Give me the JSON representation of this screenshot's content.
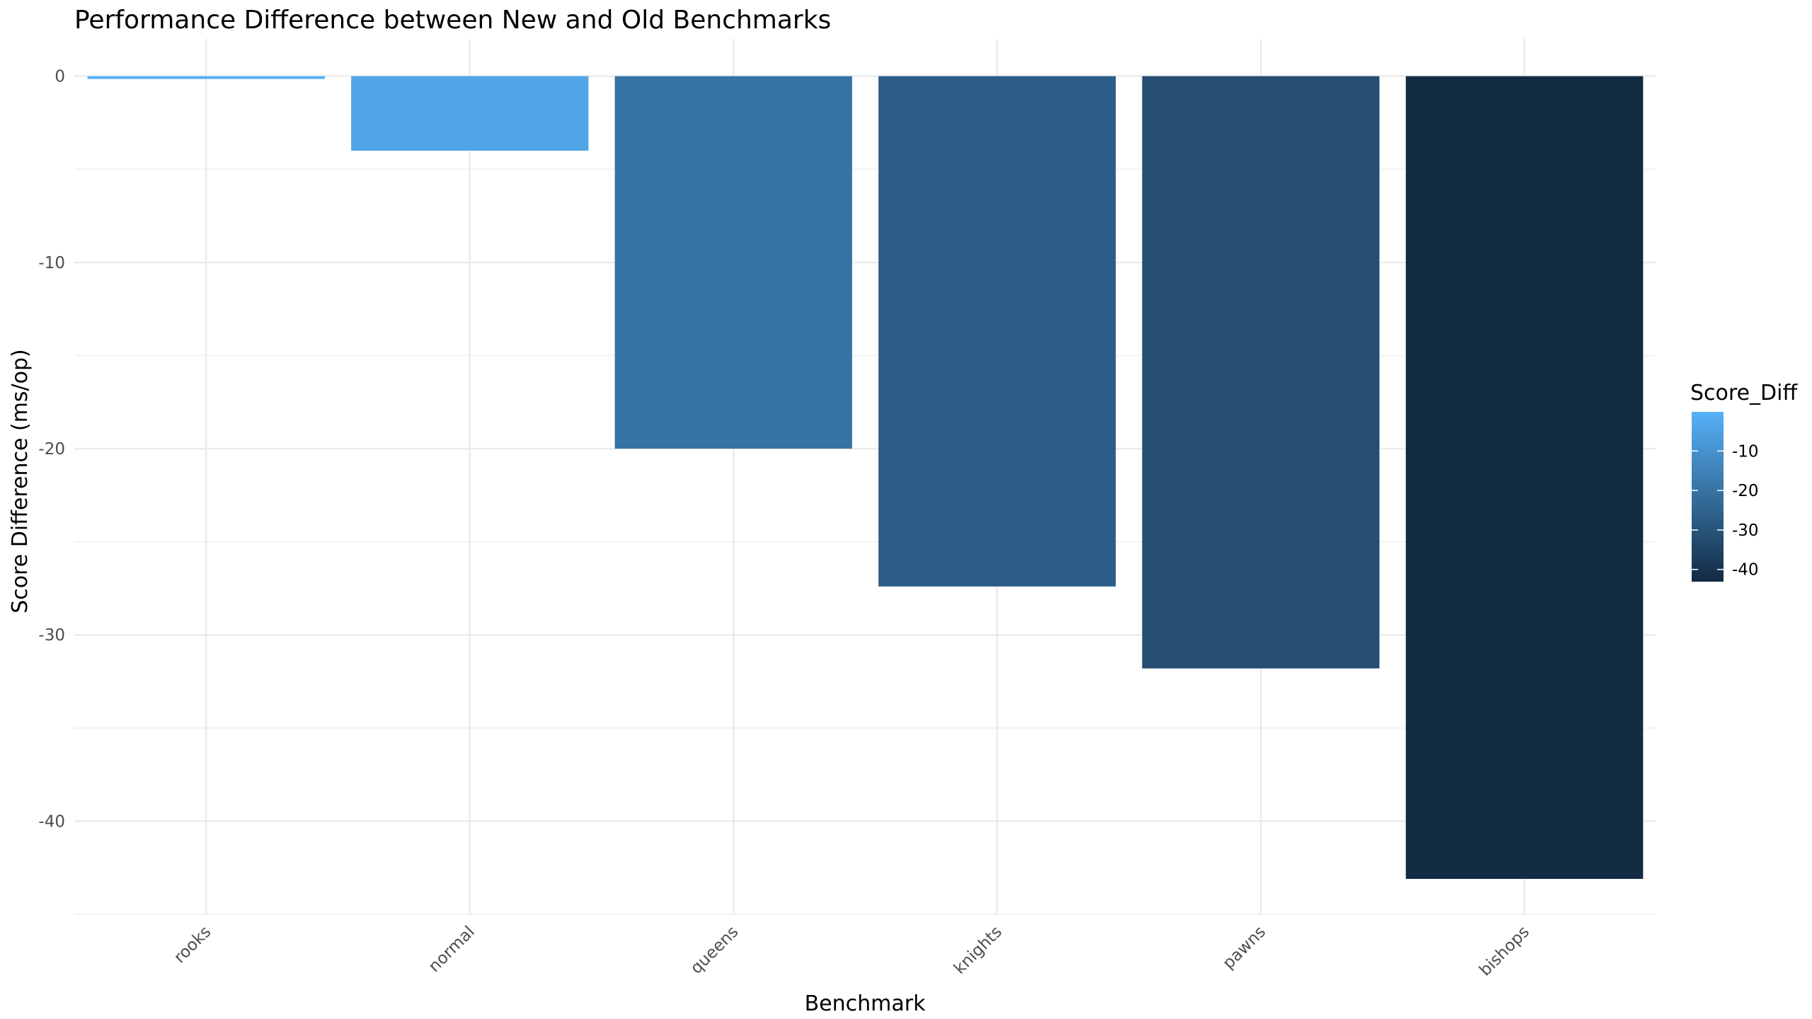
{
  "chart_data": {
    "type": "bar",
    "title": "Performance Difference between New and Old Benchmarks",
    "xlabel": "Benchmark",
    "ylabel": "Score Difference (ms/op)",
    "categories": [
      "rooks",
      "normal",
      "queens",
      "knights",
      "pawns",
      "bishops"
    ],
    "values": [
      -0.1,
      -4.0,
      -20.0,
      -27.4,
      -31.8,
      -43.1
    ],
    "ylim": [
      -45,
      2
    ],
    "y_ticks": [
      0,
      -10,
      -20,
      -30,
      -40
    ],
    "y_tick_labels": [
      "0",
      "-10",
      "-20",
      "-30",
      "-40"
    ],
    "grid": true,
    "legend": {
      "title": "Score_Diff",
      "placement": "right",
      "type": "colorbar",
      "range": [
        -43.1,
        -0.1
      ],
      "ticks": [
        -10,
        -20,
        -30,
        -40
      ],
      "tick_labels": [
        "-10",
        "-20",
        "-30",
        "-40"
      ],
      "color_low": "#132b43",
      "color_high": "#56b1f7"
    }
  }
}
